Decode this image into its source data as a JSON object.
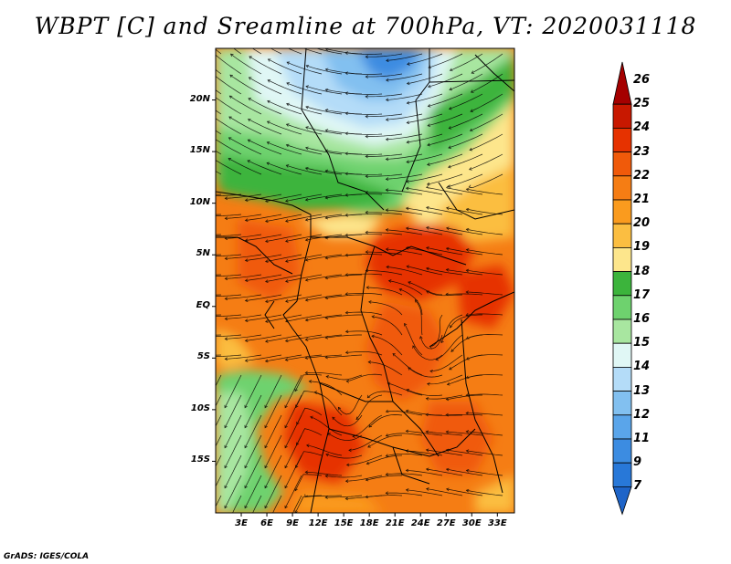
{
  "title": "WBPT [C] and Sreamline at 700hPa, VT: 2020031118",
  "credit": "GrADS: IGES/COLA",
  "map": {
    "lat_labels": [
      "20N",
      "15N",
      "10N",
      "5N",
      "EQ",
      "5S",
      "10S",
      "15S"
    ],
    "lat_values": [
      20,
      15,
      10,
      5,
      0,
      -5,
      -10,
      -15
    ],
    "lon_labels": [
      "3E",
      "6E",
      "9E",
      "12E",
      "15E",
      "18E",
      "21E",
      "24E",
      "27E",
      "30E",
      "33E"
    ],
    "lon_values": [
      3,
      6,
      9,
      12,
      15,
      18,
      21,
      24,
      27,
      30,
      33
    ],
    "lat_range": [
      -20,
      25
    ],
    "lon_range": [
      0,
      35
    ]
  },
  "colorbar": {
    "labels": [
      "26",
      "25",
      "24",
      "23",
      "22",
      "21",
      "20",
      "19",
      "18",
      "17",
      "16",
      "15",
      "14",
      "13",
      "12",
      "11",
      "9",
      "7"
    ],
    "colors": [
      "#a50000",
      "#c81800",
      "#e63200",
      "#f05a0a",
      "#f57d14",
      "#fa9b1e",
      "#fbbe41",
      "#fde68c",
      "#3cb43c",
      "#6ed26e",
      "#a8e6a0",
      "#e0f7f5",
      "#b4dcf8",
      "#82c0f0",
      "#5aa5ea",
      "#3c8ce1",
      "#2878d8",
      "#1e64c8"
    ]
  }
}
